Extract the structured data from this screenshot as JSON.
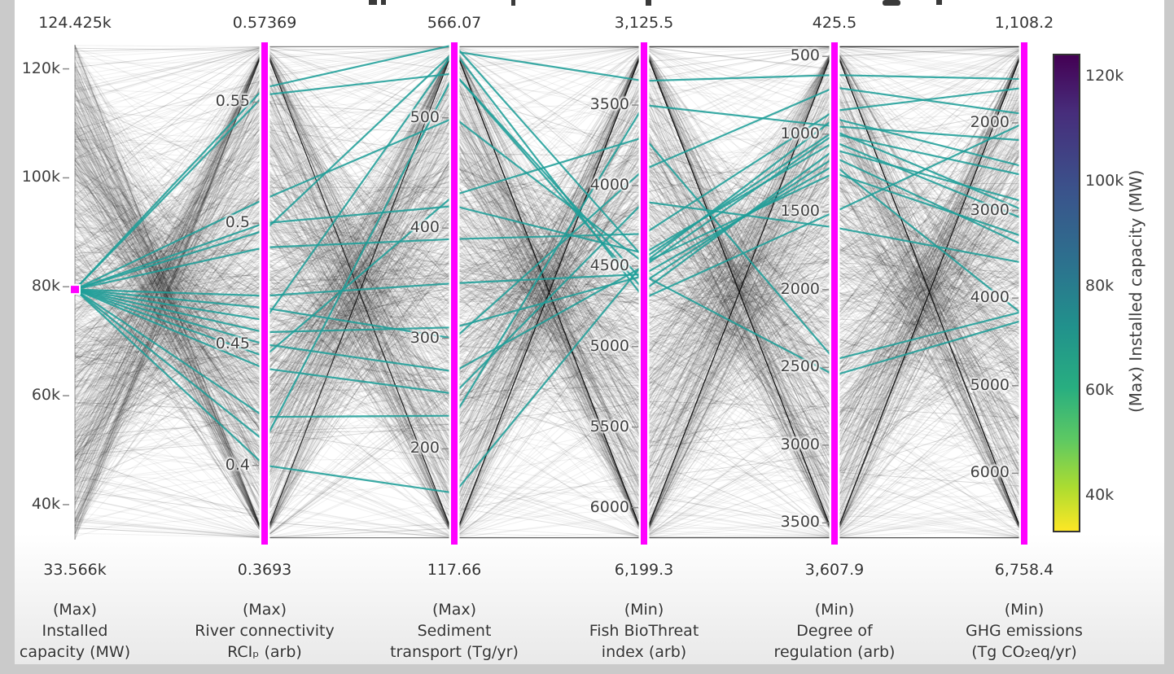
{
  "chart_data": {
    "type": "parallel-coordinates",
    "description": "Pareto-front parallel coordinates plot of hydropower portfolio objectives; hundreds of faint gray solution lines, with a brushed selection near 79.5k MW installed capacity highlighted in teal; magenta brush bars on each axis.",
    "axes": [
      {
        "id": "installed-capacity",
        "top_label": "124.425k",
        "bottom_label": "33.566k",
        "top_value": 124425,
        "bottom_value": 33566,
        "title_lines": [
          "(Max)",
          "Installed",
          "capacity (MW)"
        ],
        "ticks": [
          {
            "v": 120000,
            "label": "120k"
          },
          {
            "v": 100000,
            "label": "100k"
          },
          {
            "v": 80000,
            "label": "80k"
          },
          {
            "v": 60000,
            "label": "60k"
          },
          {
            "v": 40000,
            "label": "40k"
          }
        ],
        "brush": "point",
        "brush_value": 79500
      },
      {
        "id": "river-connectivity",
        "top_label": "0.57369",
        "bottom_label": "0.3693",
        "top_value": 0.57369,
        "bottom_value": 0.3693,
        "title_lines": [
          "(Max)",
          "River connectivity",
          "RCIₚ (arb)"
        ],
        "ticks": [
          {
            "v": 0.55,
            "label": "0.55"
          },
          {
            "v": 0.5,
            "label": "0.5"
          },
          {
            "v": 0.45,
            "label": "0.45"
          },
          {
            "v": 0.4,
            "label": "0.4"
          }
        ],
        "brush": "full"
      },
      {
        "id": "sediment-transport",
        "top_label": "566.07",
        "bottom_label": "117.66",
        "top_value": 566.07,
        "bottom_value": 117.66,
        "title_lines": [
          "(Max)",
          "Sediment",
          "transport (Tg/yr)"
        ],
        "ticks": [
          {
            "v": 500,
            "label": "500"
          },
          {
            "v": 400,
            "label": "400"
          },
          {
            "v": 300,
            "label": "300"
          },
          {
            "v": 200,
            "label": "200"
          }
        ],
        "brush": "full"
      },
      {
        "id": "fish-biothreat",
        "top_label": "3,125.5",
        "bottom_label": "6,199.3",
        "top_value": 3125.5,
        "bottom_value": 6199.3,
        "title_lines": [
          "(Min)",
          "Fish BioThreat",
          "index (arb)"
        ],
        "ticks": [
          {
            "v": 3500,
            "label": "3500"
          },
          {
            "v": 4000,
            "label": "4000"
          },
          {
            "v": 4500,
            "label": "4500"
          },
          {
            "v": 5000,
            "label": "5000"
          },
          {
            "v": 5500,
            "label": "5500"
          },
          {
            "v": 6000,
            "label": "6000"
          }
        ],
        "brush": "full"
      },
      {
        "id": "degree-of-regulation",
        "top_label": "425.5",
        "bottom_label": "3,607.9",
        "top_value": 425.5,
        "bottom_value": 3607.9,
        "title_lines": [
          "(Min)",
          "Degree of",
          "regulation (arb)"
        ],
        "ticks": [
          {
            "v": 500,
            "label": "500"
          },
          {
            "v": 1000,
            "label": "1000"
          },
          {
            "v": 1500,
            "label": "1500"
          },
          {
            "v": 2000,
            "label": "2000"
          },
          {
            "v": 2500,
            "label": "2500"
          },
          {
            "v": 3000,
            "label": "3000"
          },
          {
            "v": 3500,
            "label": "3500"
          }
        ],
        "brush": "full"
      },
      {
        "id": "ghg-emissions",
        "top_label": "1,108.2",
        "bottom_label": "6,758.4",
        "top_value": 1108.2,
        "bottom_value": 6758.4,
        "title_lines": [
          "(Min)",
          "GHG emissions",
          "(Tg CO₂eq/yr)"
        ],
        "ticks": [
          {
            "v": 2000,
            "label": "2000"
          },
          {
            "v": 3000,
            "label": "3000"
          },
          {
            "v": 4000,
            "label": "4000"
          },
          {
            "v": 5000,
            "label": "5000"
          },
          {
            "v": 6000,
            "label": "6000"
          }
        ],
        "brush": "full"
      }
    ],
    "colorbar": {
      "title": "(Max) Installed capacity (MW)",
      "top_value": 124425,
      "bottom_value": 33566,
      "ticks": [
        {
          "v": 120000,
          "label": "120k"
        },
        {
          "v": 100000,
          "label": "100k"
        },
        {
          "v": 80000,
          "label": "80k"
        },
        {
          "v": 60000,
          "label": "60k"
        },
        {
          "v": 40000,
          "label": "40k"
        }
      ]
    },
    "highlighted_series": {
      "color": "#1f9e99",
      "lines": [
        [
          79500,
          0.556,
          566,
          4450,
          980,
          3000
        ],
        [
          79500,
          0.553,
          540,
          4600,
          1150,
          3400
        ],
        [
          79500,
          0.51,
          500,
          4480,
          900,
          2500
        ],
        [
          79500,
          0.5,
          420,
          4420,
          1050,
          3100
        ],
        [
          79500,
          0.497,
          560,
          4700,
          1500,
          2000
        ],
        [
          79500,
          0.49,
          390,
          4300,
          850,
          1600
        ],
        [
          79500,
          0.47,
          350,
          4550,
          1200,
          4200
        ],
        [
          79500,
          0.465,
          300,
          3900,
          700,
          1900
        ],
        [
          79500,
          0.46,
          560,
          3350,
          620,
          1500
        ],
        [
          79500,
          0.45,
          270,
          4500,
          1000,
          2600
        ],
        [
          79500,
          0.445,
          430,
          3700,
          2450,
          4150
        ],
        [
          79500,
          0.44,
          250,
          4100,
          1600,
          3600
        ],
        [
          79500,
          0.42,
          230,
          3500,
          950,
          2200
        ],
        [
          79500,
          0.41,
          540,
          4650,
          1100,
          2900
        ],
        [
          79500,
          0.4,
          160,
          4480,
          1250,
          3300
        ],
        [
          79500,
          0.455,
          310,
          4560,
          2550,
          4250
        ]
      ]
    },
    "background_lines": {
      "color": "#1a1a1a",
      "seed": 7,
      "layers": [
        {
          "count": 1000,
          "opacity": 0.065,
          "width": 1
        },
        {
          "count": 140,
          "opacity": 0.16,
          "width": 1
        }
      ]
    },
    "colors": {
      "brush_bar": "#ff00ff",
      "highlight": "#1f9e99",
      "tick_text": "#3f3f3f",
      "viridis_top": "#440154",
      "viridis_bottom": "#fde725"
    }
  }
}
